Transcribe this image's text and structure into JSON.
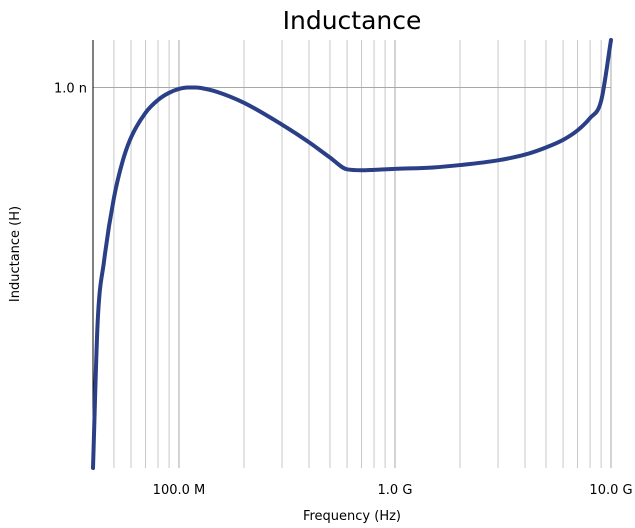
{
  "chart_data": {
    "type": "line",
    "title": "Inductance",
    "xlabel": "Frequency (Hz)",
    "ylabel": "Inductance (H)",
    "x_scale": "log",
    "xlim": [
      40000000,
      10000000000
    ],
    "ylim": [
      2e-10,
      1.1e-09
    ],
    "x_ticks": [
      {
        "value": 100000000,
        "label": "100.0 M"
      },
      {
        "value": 1000000000,
        "label": "1.0 G"
      },
      {
        "value": 10000000000,
        "label": "10.0 G"
      }
    ],
    "y_ticks": [
      {
        "value": 1e-09,
        "label": "1.0 n"
      }
    ],
    "grid": true,
    "line_color": "#2b3f87",
    "series": [
      {
        "x": [
          40000000,
          42000000,
          45000000,
          50000000,
          55000000,
          60000000,
          70000000,
          80000000,
          90000000,
          100000000,
          110000000,
          120000000,
          130000000,
          150000000,
          200000000,
          300000000,
          400000000,
          500000000,
          600000000,
          700000000,
          800000000,
          1000000000,
          1500000000,
          2000000000,
          3000000000,
          4000000000,
          5000000000,
          6000000000,
          7000000000,
          8000000000,
          9000000000,
          10000000000
        ],
        "y": [
          2e-10,
          5.03e-10,
          6.35e-10,
          7.68e-10,
          8.47e-10,
          8.95e-10,
          9.47e-10,
          9.74e-10,
          9.89e-10,
          9.97e-10,
          1e-09,
          1e-09,
          9.98e-10,
          9.91e-10,
          9.68e-10,
          9.22e-10,
          8.85e-10,
          8.53e-10,
          8.28e-10,
          8.26e-10,
          8.27e-10,
          8.29e-10,
          8.32e-10,
          8.37e-10,
          8.47e-10,
          8.59e-10,
          8.74e-10,
          8.9e-10,
          9.1e-10,
          9.36e-10,
          9.72e-10,
          1.1e-09
        ]
      }
    ]
  }
}
